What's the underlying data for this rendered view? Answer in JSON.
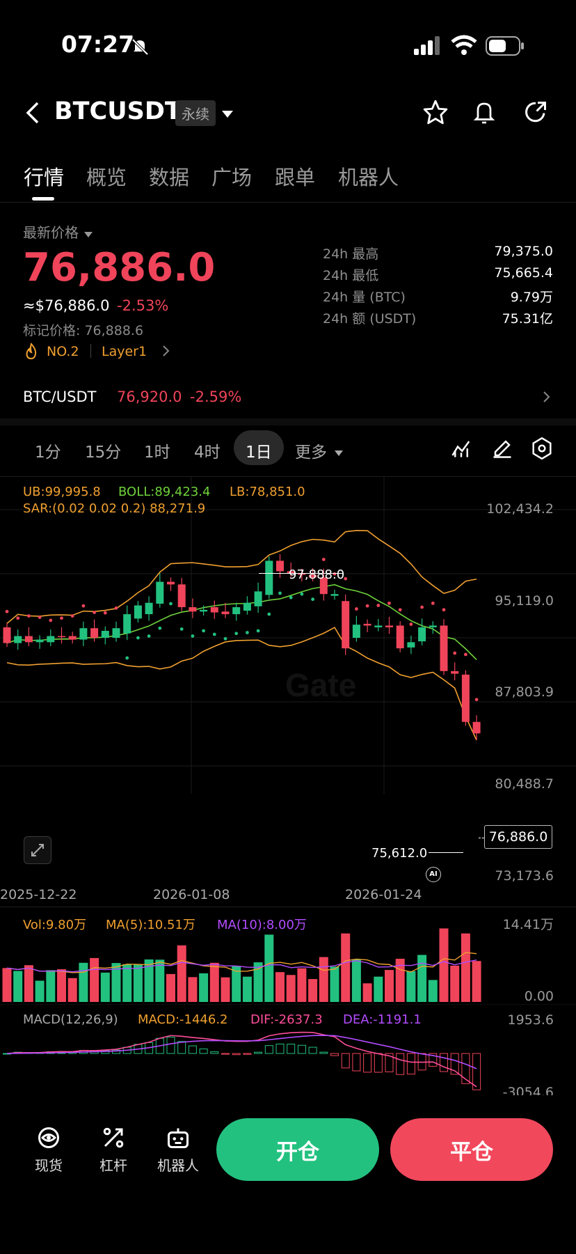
{
  "status_bar": {
    "time": "07:27"
  },
  "header": {
    "symbol": "BTCUSDT",
    "contract_type": "永续"
  },
  "tabs": [
    "行情",
    "概览",
    "数据",
    "广场",
    "跟单",
    "机器人"
  ],
  "price": {
    "label": "最新价格",
    "last": "76,886.0",
    "usd_equiv": "≈$76,886.0",
    "change_pct": "-2.53%",
    "mark_label": "标记价格: 76,888.6",
    "rank": "NO.2",
    "category": "Layer1"
  },
  "stats": [
    {
      "label": "24h  最高",
      "value": "79,375.0"
    },
    {
      "label": "24h  最低",
      "value": "75,665.4"
    },
    {
      "label": "24h  量 (BTC)",
      "value": "9.79万"
    },
    {
      "label": "24h  额 (USDT)",
      "value": "75.31亿"
    }
  ],
  "spot": {
    "pair": "BTC/USDT",
    "price": "76,920.0",
    "change": "-2.59%"
  },
  "timeframes": [
    "1分",
    "15分",
    "1时",
    "4时",
    "1日",
    "更多"
  ],
  "indicators": {
    "ub": "UB:99,995.8",
    "boll": "BOLL:89,423.4",
    "lb": "LB:78,851.0",
    "sar": "SAR:(0.02 0.02 0.2) 88,271.9"
  },
  "price_axis": [
    "102,434.2",
    "95,119.0",
    "87,803.9",
    "80,488.7",
    "73,173.6"
  ],
  "date_axis": [
    "2025-12-22",
    "2026-01-08",
    "2026-01-24"
  ],
  "annotations": {
    "high": "97,888.0",
    "low": "75,612.0",
    "current": "76,886.0",
    "ai": "AI",
    "watermark": "Gate"
  },
  "volume": {
    "vol": "Vol:9.80万",
    "ma5": "MA(5):10.51万",
    "ma10": "MA(10):8.00万",
    "max": "14.41万",
    "min": "0.00"
  },
  "macd": {
    "name": "MACD(12,26,9)",
    "macd": "MACD:-1446.2",
    "dif": "DIF:-2637.3",
    "dea": "DEA:-1191.1",
    "max": "1953.6",
    "min": "-3054.6"
  },
  "bottom_nav": [
    "现货",
    "杠杆",
    "机器人"
  ],
  "actions": {
    "open": "开仓",
    "close": "平仓"
  },
  "colors": {
    "up": "#22c17f",
    "down": "#f0445a",
    "boll_band": "#f0a030",
    "boll_mid": "#6fd23c",
    "dea": "#b34cff"
  },
  "chart_data": {
    "type": "candlestick",
    "ylim": [
      73173.6,
      102434.2
    ],
    "candles": [
      {
        "o": 89000,
        "c": 87200
      },
      {
        "o": 87200,
        "c": 88000
      },
      {
        "o": 88000,
        "c": 87300
      },
      {
        "o": 87300,
        "c": 87600
      },
      {
        "o": 87300,
        "c": 88000
      },
      {
        "o": 88000,
        "c": 87900
      },
      {
        "o": 88000,
        "c": 87600
      },
      {
        "o": 87600,
        "c": 88900
      },
      {
        "o": 88900,
        "c": 87800
      },
      {
        "o": 87800,
        "c": 88600
      },
      {
        "o": 87800,
        "c": 88900
      },
      {
        "o": 88300,
        "c": 90500
      },
      {
        "o": 90000,
        "c": 91500
      },
      {
        "o": 90500,
        "c": 91800
      },
      {
        "o": 91700,
        "c": 94200
      },
      {
        "o": 94200,
        "c": 93900
      },
      {
        "o": 93900,
        "c": 91300
      },
      {
        "o": 91300,
        "c": 90800
      },
      {
        "o": 90800,
        "c": 91000
      },
      {
        "o": 91300,
        "c": 90700
      },
      {
        "o": 90800,
        "c": 90500
      },
      {
        "o": 90500,
        "c": 91300
      },
      {
        "o": 90900,
        "c": 91800
      },
      {
        "o": 91400,
        "c": 93100
      },
      {
        "o": 92700,
        "c": 96600
      },
      {
        "o": 96600,
        "c": 95400
      },
      {
        "o": 95400,
        "c": 95200
      },
      {
        "o": 95200,
        "c": 95000
      },
      {
        "o": 95000,
        "c": 94700
      },
      {
        "o": 94700,
        "c": 92800
      },
      {
        "o": 92600,
        "c": 92800
      },
      {
        "o": 92000,
        "c": 86600
      },
      {
        "o": 87800,
        "c": 89300
      },
      {
        "o": 89400,
        "c": 89200
      },
      {
        "o": 89000,
        "c": 89200
      },
      {
        "o": 89200,
        "c": 89000
      },
      {
        "o": 89200,
        "c": 86600
      },
      {
        "o": 86700,
        "c": 87300
      },
      {
        "o": 87400,
        "c": 89000
      },
      {
        "o": 89000,
        "c": 89200
      },
      {
        "o": 89200,
        "c": 84000
      },
      {
        "o": 84000,
        "c": 83700
      },
      {
        "o": 83600,
        "c": 78200
      },
      {
        "o": 78200,
        "c": 76886
      }
    ]
  }
}
